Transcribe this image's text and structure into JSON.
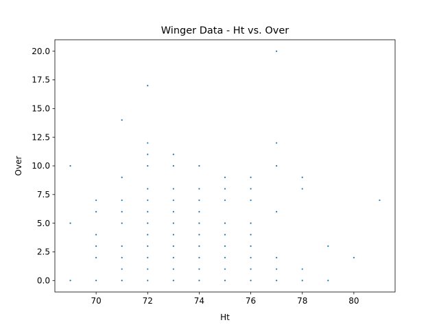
{
  "chart_data": {
    "type": "scatter",
    "title": "Winger Data - Ht vs. Over",
    "xlabel": "Ht",
    "ylabel": "Over",
    "xlim": [
      68.4,
      81.6
    ],
    "ylim": [
      -1.0,
      21.0
    ],
    "x_ticks": [
      70,
      72,
      74,
      76,
      78,
      80
    ],
    "x_tick_labels": [
      "70",
      "72",
      "74",
      "76",
      "78",
      "80"
    ],
    "y_ticks": [
      0,
      2.5,
      5,
      7.5,
      10,
      12.5,
      15,
      17.5,
      20
    ],
    "y_tick_labels": [
      "0.0",
      "2.5",
      "5.0",
      "7.5",
      "10.0",
      "12.5",
      "15.0",
      "17.5",
      "20.0"
    ],
    "grid": false,
    "marker_color": "#1f77b4",
    "series": [
      {
        "points": [
          [
            69,
            0
          ],
          [
            69,
            5
          ],
          [
            69,
            10
          ],
          [
            70,
            0
          ],
          [
            70,
            2
          ],
          [
            70,
            3
          ],
          [
            70,
            4
          ],
          [
            70,
            6
          ],
          [
            70,
            7
          ],
          [
            71,
            0
          ],
          [
            71,
            1
          ],
          [
            71,
            2
          ],
          [
            71,
            3
          ],
          [
            71,
            5
          ],
          [
            71,
            6
          ],
          [
            71,
            7
          ],
          [
            71,
            9
          ],
          [
            71,
            14
          ],
          [
            72,
            0
          ],
          [
            72,
            1
          ],
          [
            72,
            2
          ],
          [
            72,
            3
          ],
          [
            72,
            4
          ],
          [
            72,
            5
          ],
          [
            72,
            6
          ],
          [
            72,
            7
          ],
          [
            72,
            8
          ],
          [
            72,
            10
          ],
          [
            72,
            11
          ],
          [
            72,
            12
          ],
          [
            72,
            17
          ],
          [
            73,
            0
          ],
          [
            73,
            1
          ],
          [
            73,
            2
          ],
          [
            73,
            3
          ],
          [
            73,
            4
          ],
          [
            73,
            5
          ],
          [
            73,
            6
          ],
          [
            73,
            7
          ],
          [
            73,
            8
          ],
          [
            73,
            10
          ],
          [
            73,
            11
          ],
          [
            74,
            0
          ],
          [
            74,
            1
          ],
          [
            74,
            2
          ],
          [
            74,
            3
          ],
          [
            74,
            4
          ],
          [
            74,
            5
          ],
          [
            74,
            6
          ],
          [
            74,
            7
          ],
          [
            74,
            8
          ],
          [
            74,
            10
          ],
          [
            75,
            0
          ],
          [
            75,
            1
          ],
          [
            75,
            2
          ],
          [
            75,
            3
          ],
          [
            75,
            4
          ],
          [
            75,
            5
          ],
          [
            75,
            7
          ],
          [
            75,
            8
          ],
          [
            75,
            9
          ],
          [
            76,
            0
          ],
          [
            76,
            1
          ],
          [
            76,
            2
          ],
          [
            76,
            3
          ],
          [
            76,
            4
          ],
          [
            76,
            5
          ],
          [
            76,
            7
          ],
          [
            76,
            8
          ],
          [
            76,
            9
          ],
          [
            77,
            0
          ],
          [
            77,
            1
          ],
          [
            77,
            2
          ],
          [
            77,
            6
          ],
          [
            77,
            10
          ],
          [
            77,
            12
          ],
          [
            77,
            20
          ],
          [
            78,
            0
          ],
          [
            78,
            1
          ],
          [
            78,
            8
          ],
          [
            78,
            9
          ],
          [
            79,
            0
          ],
          [
            79,
            3
          ],
          [
            80,
            2
          ],
          [
            81,
            7
          ]
        ]
      }
    ]
  }
}
